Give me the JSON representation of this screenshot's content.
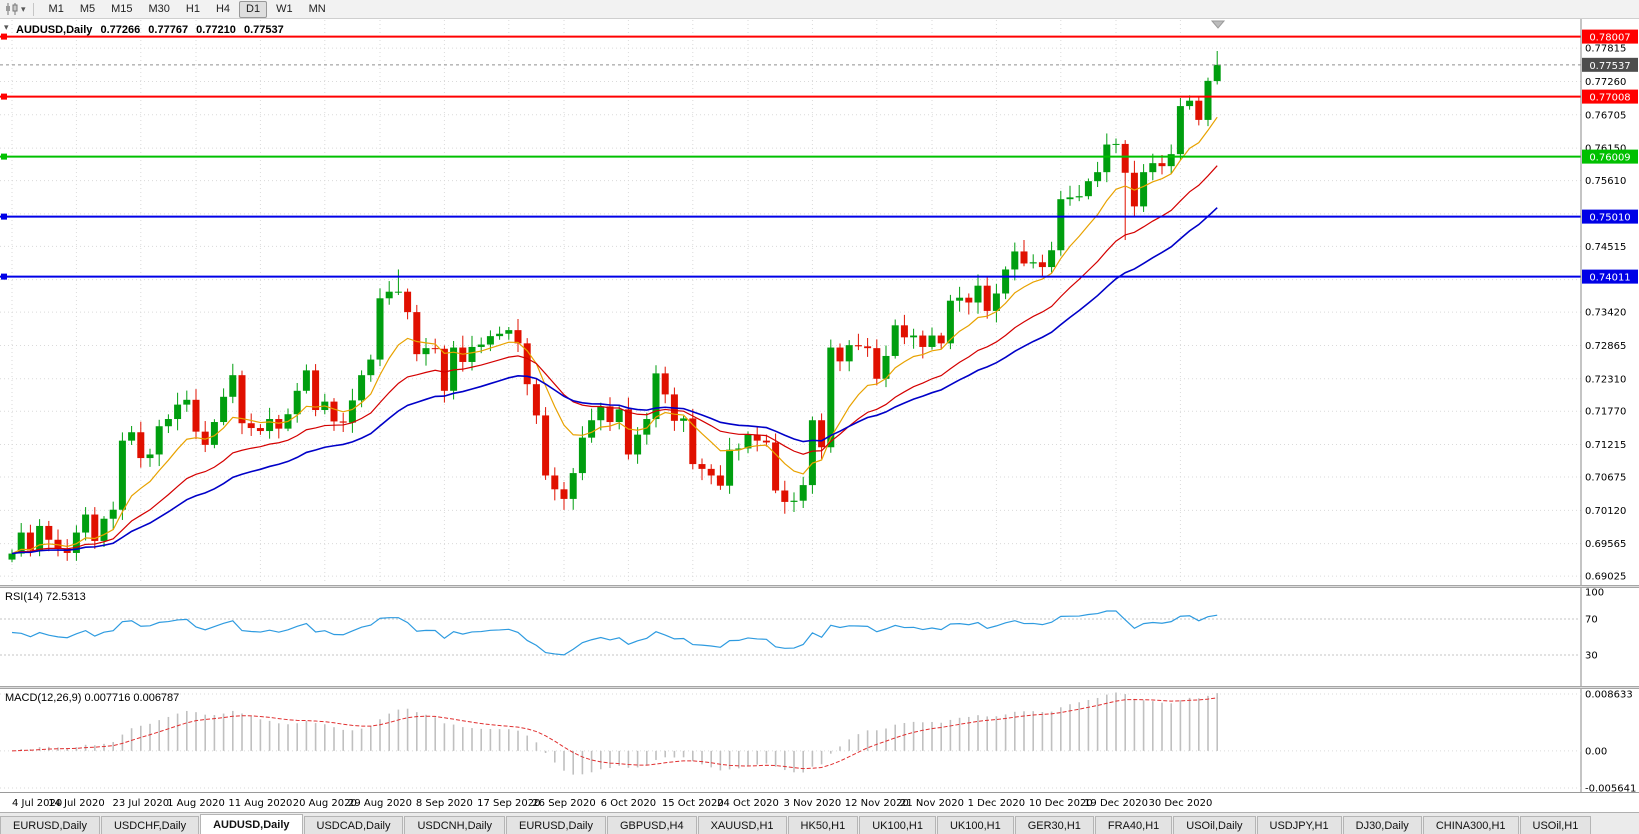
{
  "toolbar": {
    "timeframes": [
      "M1",
      "M5",
      "M15",
      "M30",
      "H1",
      "H4",
      "D1",
      "W1",
      "MN"
    ],
    "active_timeframe": "D1"
  },
  "chart_header": {
    "symbol": "AUDUSD,Daily",
    "open": "0.77266",
    "high": "0.77767",
    "low": "0.77210",
    "close": "0.77537"
  },
  "main_chart": {
    "price_axis_labels": [
      "0.77815",
      "0.77260",
      "0.76705",
      "0.76150",
      "0.75610",
      "0.75055",
      "0.74515",
      "0.73960",
      "0.73420",
      "0.72865",
      "0.72310",
      "0.71770",
      "0.71215",
      "0.70675",
      "0.70120",
      "0.69565",
      "0.69025"
    ],
    "hidden_axis_labels": [
      "0.75055",
      "0.73960"
    ],
    "hlines": [
      {
        "value": 0.78007,
        "label": "0.78007",
        "color": "#FF0000",
        "text_color": "#FFFFFF"
      },
      {
        "value": 0.77008,
        "label": "0.77008",
        "color": "#FF0000",
        "text_color": "#FFFFFF"
      },
      {
        "value": 0.76009,
        "label": "0.76009",
        "color": "#00C000",
        "text_color": "#FFFFFF"
      },
      {
        "value": 0.7501,
        "label": "0.75010",
        "color": "#0000E6",
        "text_color": "#FFFFFF"
      },
      {
        "value": 0.74011,
        "label": "0.74011",
        "color": "#0000E6",
        "text_color": "#FFFFFF"
      }
    ],
    "bid": {
      "value": 0.77537,
      "label": "0.77537",
      "badge_color": "#4d4d4d",
      "text_color": "#FFFFFF"
    }
  },
  "rsi_panel": {
    "label": "RSI(14) 72.5313",
    "period": 14,
    "axis_labels": [
      "100",
      "70",
      "30"
    ],
    "levels": [
      70,
      30
    ],
    "line_color": "#2E9BE0"
  },
  "macd_panel": {
    "label": "MACD(12,26,9) 0.007716 0.006787",
    "axis_labels": [
      "0.008633",
      "0.00",
      "-0.005641"
    ],
    "max": 0.008633,
    "min": -0.005641,
    "histogram_color": "#C0C0C0",
    "signal_color": "#E03030"
  },
  "date_axis": {
    "labels": [
      "4 Jul 2020",
      "14 Jul 2020",
      "23 Jul 2020",
      "1 Aug 2020",
      "11 Aug 2020",
      "20 Aug 2020",
      "29 Aug 2020",
      "8 Sep 2020",
      "17 Sep 2020",
      "26 Sep 2020",
      "6 Oct 2020",
      "15 Oct 2020",
      "24 Oct 2020",
      "3 Nov 2020",
      "12 Nov 2020",
      "21 Nov 2020",
      "1 Dec 2020",
      "10 Dec 2020",
      "19 Dec 2020",
      "30 Dec 2020"
    ],
    "indices": [
      0,
      7,
      14,
      20,
      27,
      34,
      40,
      47,
      54,
      60,
      67,
      74,
      80,
      87,
      94,
      100,
      107,
      114,
      120,
      127
    ]
  },
  "tabs": {
    "items": [
      "EURUSD,Daily",
      "USDCHF,Daily",
      "AUDUSD,Daily",
      "USDCAD,Daily",
      "USDCNH,Daily",
      "EURUSD,Daily",
      "GBPUSD,H4",
      "XAUUSD,H1",
      "HK50,H1",
      "UK100,H1",
      "UK100,H1",
      "GER30,H1",
      "FRA40,H1",
      "USOil,Daily",
      "USDJPY,H1",
      "DJ30,Daily",
      "CHINA300,H1",
      "USOil,H1"
    ],
    "active_index": 2
  },
  "chart_data": {
    "type": "candlestick",
    "symbol": "AUDUSD",
    "timeframe": "Daily",
    "price_range": [
      0.6896,
      0.7825
    ],
    "first_open": 0.693,
    "closes": [
      0.694,
      0.6975,
      0.6945,
      0.6986,
      0.6963,
      0.6948,
      0.6941,
      0.6975,
      0.7005,
      0.6961,
      0.6998,
      0.7013,
      0.7128,
      0.7142,
      0.7099,
      0.7105,
      0.7152,
      0.7164,
      0.7188,
      0.7196,
      0.7143,
      0.7121,
      0.7159,
      0.7201,
      0.7237,
      0.7157,
      0.7149,
      0.7144,
      0.7164,
      0.7148,
      0.7172,
      0.7211,
      0.7245,
      0.7179,
      0.7193,
      0.716,
      0.7158,
      0.7195,
      0.7237,
      0.7263,
      0.7365,
      0.7376,
      0.7376,
      0.7342,
      0.7272,
      0.7282,
      0.7281,
      0.7211,
      0.7283,
      0.7259,
      0.7284,
      0.7288,
      0.7302,
      0.7306,
      0.7312,
      0.729,
      0.7222,
      0.717,
      0.707,
      0.7047,
      0.7031,
      0.7074,
      0.7133,
      0.7162,
      0.7185,
      0.7159,
      0.718,
      0.7105,
      0.7138,
      0.7164,
      0.724,
      0.7205,
      0.7161,
      0.7165,
      0.7089,
      0.7081,
      0.707,
      0.7053,
      0.7113,
      0.7115,
      0.7138,
      0.7128,
      0.7125,
      0.7045,
      0.7026,
      0.7028,
      0.7054,
      0.7162,
      0.7117,
      0.7283,
      0.726,
      0.7287,
      0.7285,
      0.7282,
      0.7231,
      0.7269,
      0.732,
      0.73,
      0.7303,
      0.7284,
      0.7303,
      0.729,
      0.7361,
      0.7366,
      0.7358,
      0.7386,
      0.7344,
      0.7373,
      0.7413,
      0.7443,
      0.7423,
      0.7425,
      0.7417,
      0.7445,
      0.753,
      0.7533,
      0.7535,
      0.756,
      0.7575,
      0.7621,
      0.7622,
      0.7574,
      0.7518,
      0.7575,
      0.759,
      0.7585,
      0.7605,
      0.7685,
      0.7694,
      0.7662,
      0.7727,
      0.77537
    ],
    "overrides": {
      "42": {
        "h": 0.7413
      },
      "121": {
        "l": 0.7462
      },
      "131": {
        "o": 0.77266,
        "h": 0.77767,
        "l": 0.7721,
        "c": 0.77537
      }
    },
    "moving_averages": [
      {
        "period": 9,
        "color": "#E8A200",
        "width": 1.2
      },
      {
        "period": 21,
        "color": "#D40000",
        "width": 1.2
      },
      {
        "period": 34,
        "color": "#0000C8",
        "width": 1.6
      }
    ],
    "macd_periods": [
      12,
      26,
      9
    ],
    "colors": {
      "bull": "#009E0F",
      "bear": "#E01000"
    }
  }
}
